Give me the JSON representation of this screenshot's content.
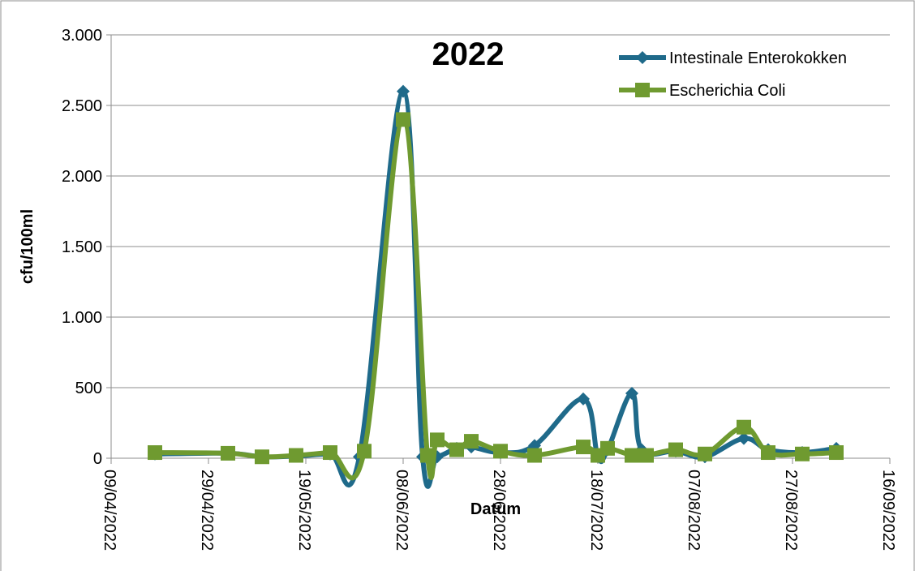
{
  "chart_data": {
    "type": "line",
    "title": "2022",
    "xlabel": "Datum",
    "ylabel": "cfu/100ml",
    "ylim": [
      0,
      3000
    ],
    "y_ticks": [
      0,
      500,
      1000,
      1500,
      2000,
      2500,
      3000
    ],
    "y_tick_labels": [
      "0",
      "500",
      "1.000",
      "1.500",
      "2.000",
      "2.500",
      "3.000"
    ],
    "x_tick_labels": [
      "09/04/2022",
      "29/04/2022",
      "19/05/2022",
      "08/06/2022",
      "28/06/2022",
      "18/07/2022",
      "07/08/2022",
      "27/08/2022",
      "16/09/2022"
    ],
    "x_range": [
      "09/04/2022",
      "16/09/2022"
    ],
    "grid": "horizontal",
    "legend_position": "top-right",
    "series": [
      {
        "name": "Intestinale Enterokokken",
        "color": "#1f6a8a",
        "marker": "diamond",
        "points": [
          {
            "x": "18/04/2022",
            "y": 30
          },
          {
            "x": "03/05/2022",
            "y": 35
          },
          {
            "x": "10/05/2022",
            "y": 10
          },
          {
            "x": "17/05/2022",
            "y": 15
          },
          {
            "x": "24/05/2022",
            "y": 30
          },
          {
            "x": "30/05/2022",
            "y": 10
          },
          {
            "x": "08/06/2022",
            "y": 2600
          },
          {
            "x": "12/06/2022",
            "y": 10
          },
          {
            "x": "15/06/2022",
            "y": 10
          },
          {
            "x": "19/06/2022",
            "y": 70
          },
          {
            "x": "22/06/2022",
            "y": 80
          },
          {
            "x": "28/06/2022",
            "y": 40
          },
          {
            "x": "05/07/2022",
            "y": 90
          },
          {
            "x": "15/07/2022",
            "y": 420
          },
          {
            "x": "18/07/2022",
            "y": 10
          },
          {
            "x": "20/07/2022",
            "y": 60
          },
          {
            "x": "25/07/2022",
            "y": 460
          },
          {
            "x": "27/07/2022",
            "y": 60
          },
          {
            "x": "03/08/2022",
            "y": 50
          },
          {
            "x": "09/08/2022",
            "y": 10
          },
          {
            "x": "17/08/2022",
            "y": 140
          },
          {
            "x": "22/08/2022",
            "y": 60
          },
          {
            "x": "29/08/2022",
            "y": 40
          },
          {
            "x": "05/09/2022",
            "y": 70
          }
        ]
      },
      {
        "name": "Escherichia Coli",
        "color": "#6f9a30",
        "marker": "square",
        "points": [
          {
            "x": "18/04/2022",
            "y": 40
          },
          {
            "x": "03/05/2022",
            "y": 35
          },
          {
            "x": "10/05/2022",
            "y": 10
          },
          {
            "x": "17/05/2022",
            "y": 20
          },
          {
            "x": "24/05/2022",
            "y": 40
          },
          {
            "x": "31/05/2022",
            "y": 50
          },
          {
            "x": "08/06/2022",
            "y": 2400
          },
          {
            "x": "13/06/2022",
            "y": 20
          },
          {
            "x": "15/06/2022",
            "y": 130
          },
          {
            "x": "19/06/2022",
            "y": 60
          },
          {
            "x": "22/06/2022",
            "y": 120
          },
          {
            "x": "28/06/2022",
            "y": 50
          },
          {
            "x": "05/07/2022",
            "y": 20
          },
          {
            "x": "15/07/2022",
            "y": 80
          },
          {
            "x": "18/07/2022",
            "y": 20
          },
          {
            "x": "20/07/2022",
            "y": 70
          },
          {
            "x": "25/07/2022",
            "y": 20
          },
          {
            "x": "28/07/2022",
            "y": 20
          },
          {
            "x": "03/08/2022",
            "y": 60
          },
          {
            "x": "09/08/2022",
            "y": 30
          },
          {
            "x": "17/08/2022",
            "y": 220
          },
          {
            "x": "22/08/2022",
            "y": 40
          },
          {
            "x": "29/08/2022",
            "y": 30
          },
          {
            "x": "05/09/2022",
            "y": 40
          }
        ]
      }
    ]
  }
}
